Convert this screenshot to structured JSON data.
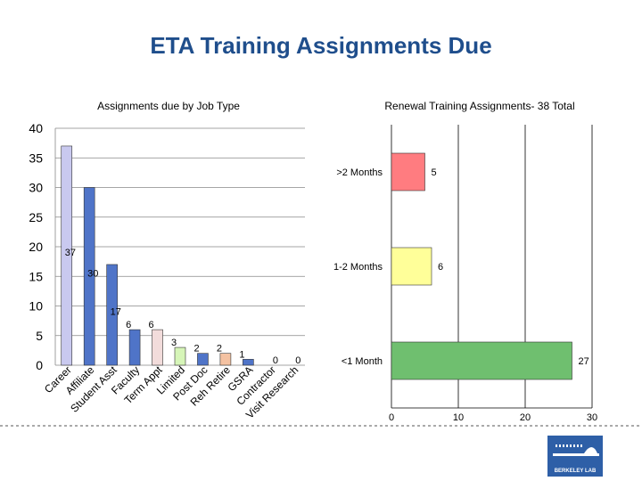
{
  "slide": {
    "title": "ETA Training Assignments Due"
  },
  "chart_data": [
    {
      "type": "bar",
      "title": "Assignments due by Job Type",
      "categories": [
        "Career",
        "Affiliate",
        "Student Asst",
        "Faculty",
        "Term Appt",
        "Limited",
        "Post Doc",
        "Reh Retire",
        "GSRA",
        "Contractor",
        "Visit Research"
      ],
      "values": [
        37,
        30,
        17,
        6,
        6,
        3,
        2,
        2,
        1,
        0,
        0
      ],
      "value_labels": [
        "37",
        "30",
        "17",
        "6",
        "6",
        "3",
        "2",
        "2",
        "1",
        "0",
        "0"
      ],
      "colors": [
        "#c9c9ef",
        "#4f74c8",
        "#4f74c8",
        "#4f74c8",
        "#f2dcdb",
        "#d6f5b8",
        "#4f74c8",
        "#f4c2a2",
        "#4f74c8",
        "#4f74c8",
        "#4f74c8"
      ],
      "ylim": [
        0,
        40
      ],
      "yticks": [
        "0",
        "5",
        "10",
        "15",
        "20",
        "25",
        "30",
        "35",
        "40"
      ],
      "grid": true,
      "legend": "none"
    },
    {
      "type": "bar",
      "orientation": "horizontal",
      "title": "Renewal Training Assignments- 38 Total",
      "categories": [
        ">2 Months",
        "1-2 Months",
        "<1 Month"
      ],
      "values": [
        5,
        6,
        27
      ],
      "value_labels": [
        "5",
        "6",
        "27"
      ],
      "colors": [
        "#ff7c80",
        "#ffff99",
        "#6fbf6f"
      ],
      "xlim": [
        0,
        30
      ],
      "xticks": [
        "0",
        "10",
        "20",
        "30"
      ],
      "grid": true,
      "legend": "none"
    }
  ],
  "logo": {
    "text": "BERKELEY LAB"
  }
}
